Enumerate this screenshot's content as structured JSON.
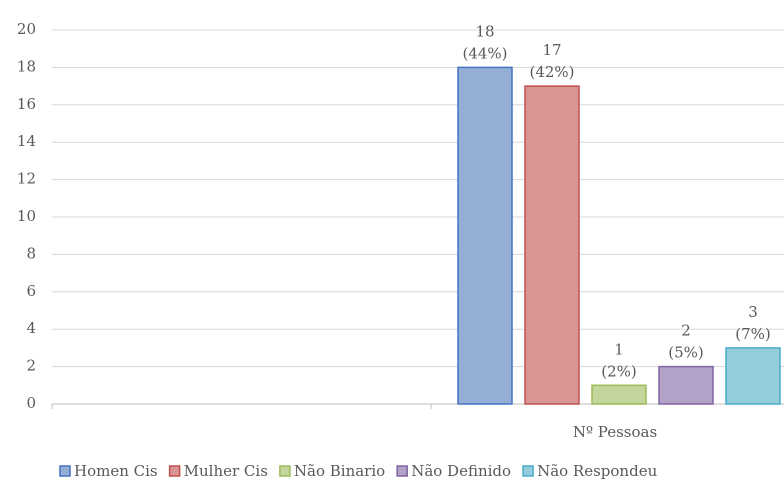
{
  "chart_data": {
    "type": "bar",
    "categories": [
      null,
      "Nº Pessoas"
    ],
    "series": [
      {
        "name": "Homen Cis",
        "color": "#95aed6",
        "edge": "#4472c4",
        "values": [
          null,
          18
        ],
        "value_labels": [
          null,
          [
            "18",
            "(44%)"
          ]
        ]
      },
      {
        "name": "Mulher Cis",
        "color": "#d99594",
        "edge": "#c0504d",
        "values": [
          null,
          17
        ],
        "value_labels": [
          null,
          [
            "17",
            "(42%)"
          ]
        ]
      },
      {
        "name": "Não Binario",
        "color": "#c3d69b",
        "edge": "#9bbb59",
        "values": [
          null,
          1
        ],
        "value_labels": [
          null,
          [
            "1",
            "(2%)"
          ]
        ]
      },
      {
        "name": "Não Definido",
        "color": "#b3a2c7",
        "edge": "#8064a2",
        "values": [
          null,
          2
        ],
        "value_labels": [
          null,
          [
            "2",
            "(5%)"
          ]
        ]
      },
      {
        "name": "Não Respondeu",
        "color": "#93cddd",
        "edge": "#4bacc6",
        "values": [
          null,
          3
        ],
        "value_labels": [
          null,
          [
            "3",
            "(7%)"
          ]
        ]
      }
    ],
    "ylim": [
      0,
      20
    ],
    "yticks": [
      0,
      2,
      4,
      6,
      8,
      10,
      12,
      14,
      16,
      18,
      20
    ],
    "grid": true,
    "legend": "bottom"
  }
}
